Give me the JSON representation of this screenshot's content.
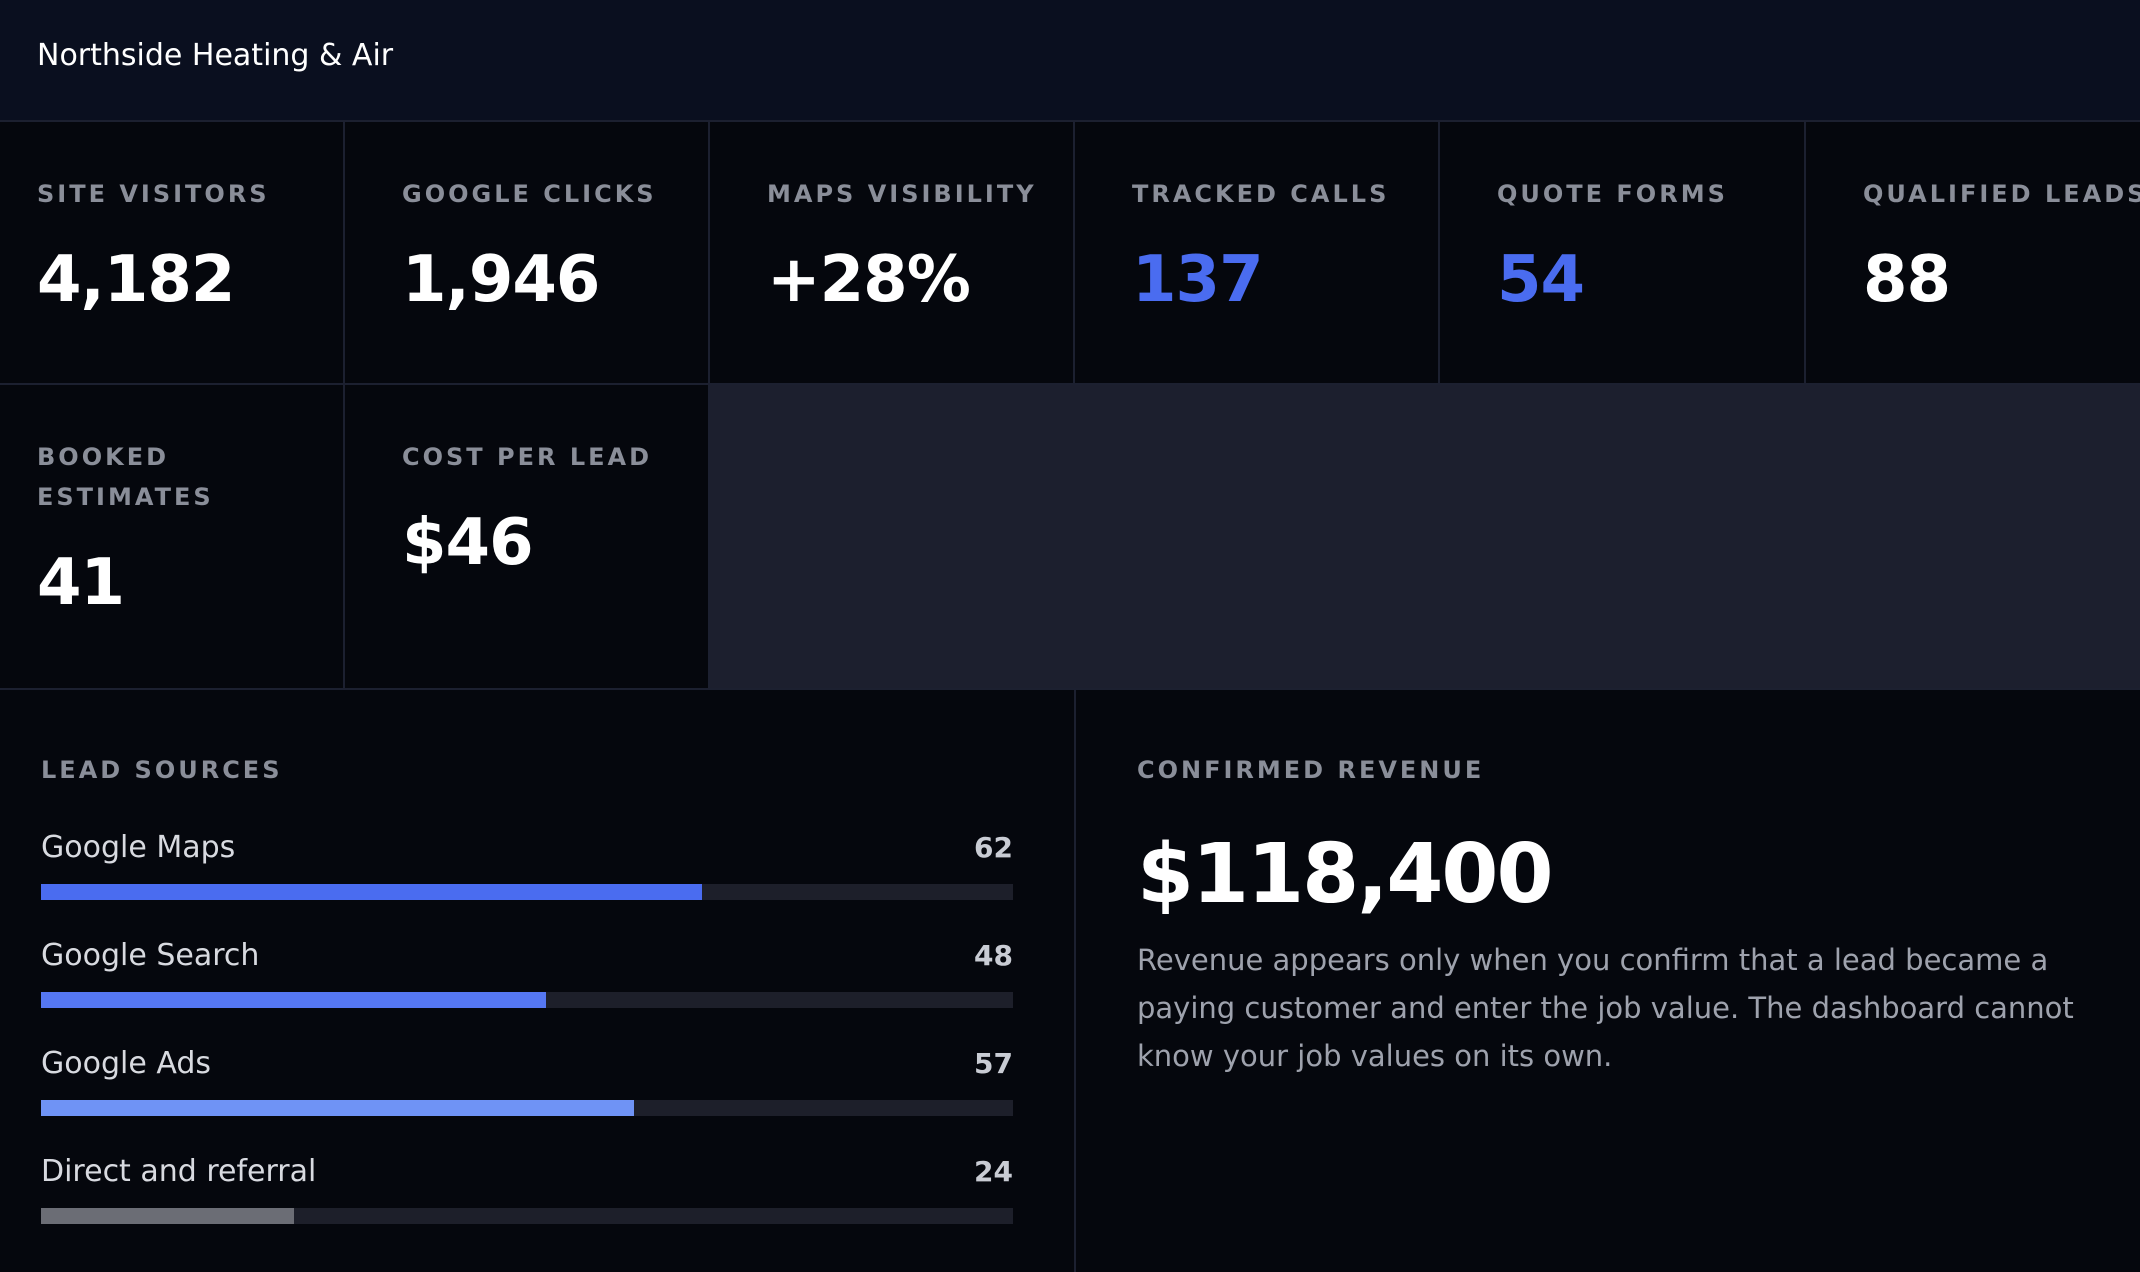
{
  "header": {
    "title": "Northside Heating & Air"
  },
  "kpis": [
    {
      "label": "SITE VISITORS",
      "value": "4,182",
      "accent": false
    },
    {
      "label": "GOOGLE CLICKS",
      "value": "1,946",
      "accent": false
    },
    {
      "label": "MAPS VISIBILITY",
      "value": "+28%",
      "accent": false
    },
    {
      "label": "TRACKED CALLS",
      "value": "137",
      "accent": true
    },
    {
      "label": "QUOTE FORMS",
      "value": "54",
      "accent": true
    },
    {
      "label": "QUALIFIED LEADS",
      "value": "88",
      "accent": false
    },
    {
      "label": "BOOKED ESTIMATES",
      "value": "41",
      "accent": false
    },
    {
      "label": "COST PER LEAD",
      "value": "$46",
      "accent": false
    }
  ],
  "lead_sources": {
    "label": "LEAD SOURCES",
    "items": [
      {
        "name": "Google Maps",
        "count": "62",
        "fraction": 0.68,
        "color": "#4a6cf0"
      },
      {
        "name": "Google Search",
        "count": "48",
        "fraction": 0.52,
        "color": "#5577f2"
      },
      {
        "name": "Google Ads",
        "count": "57",
        "fraction": 0.61,
        "color": "#6f93f5"
      },
      {
        "name": "Direct and referral",
        "count": "24",
        "fraction": 0.26,
        "color": "#6b6d75"
      }
    ]
  },
  "revenue": {
    "label": "CONFIRMED REVENUE",
    "value": "$118,400",
    "note": "Revenue appears only when you confirm that a lead became a paying customer and enter the job value. The dashboard cannot know your job values on its own."
  }
}
